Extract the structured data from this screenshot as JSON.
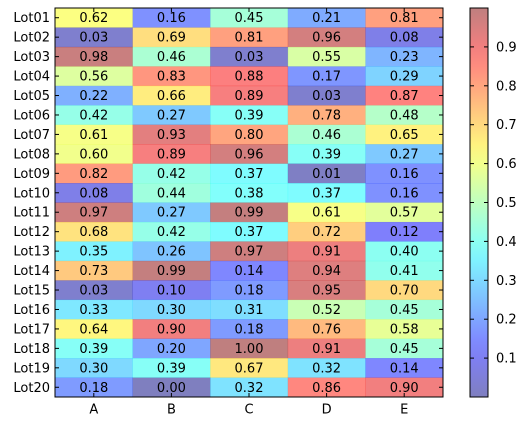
{
  "chart_data": {
    "type": "heatmap",
    "x_categories": [
      "A",
      "B",
      "C",
      "D",
      "E"
    ],
    "y_categories": [
      "Lot01",
      "Lot02",
      "Lot03",
      "Lot04",
      "Lot05",
      "Lot06",
      "Lot07",
      "Lot08",
      "Lot09",
      "Lot10",
      "Lot11",
      "Lot12",
      "Lot13",
      "Lot14",
      "Lot15",
      "Lot16",
      "Lot17",
      "Lot18",
      "Lot19",
      "Lot20"
    ],
    "values": [
      [
        0.62,
        0.16,
        0.45,
        0.21,
        0.81
      ],
      [
        0.03,
        0.69,
        0.81,
        0.96,
        0.08
      ],
      [
        0.98,
        0.46,
        0.03,
        0.55,
        0.23
      ],
      [
        0.56,
        0.83,
        0.88,
        0.17,
        0.29
      ],
      [
        0.22,
        0.66,
        0.89,
        0.03,
        0.87
      ],
      [
        0.42,
        0.27,
        0.39,
        0.78,
        0.48
      ],
      [
        0.61,
        0.93,
        0.8,
        0.46,
        0.65
      ],
      [
        0.6,
        0.89,
        0.96,
        0.39,
        0.27
      ],
      [
        0.82,
        0.42,
        0.37,
        0.01,
        0.16
      ],
      [
        0.08,
        0.44,
        0.38,
        0.37,
        0.16
      ],
      [
        0.97,
        0.27,
        0.99,
        0.61,
        0.57
      ],
      [
        0.68,
        0.42,
        0.37,
        0.72,
        0.12
      ],
      [
        0.35,
        0.26,
        0.97,
        0.91,
        0.4
      ],
      [
        0.73,
        0.99,
        0.14,
        0.94,
        0.41
      ],
      [
        0.03,
        0.1,
        0.18,
        0.95,
        0.7
      ],
      [
        0.33,
        0.3,
        0.31,
        0.52,
        0.45
      ],
      [
        0.64,
        0.9,
        0.18,
        0.76,
        0.58
      ],
      [
        0.39,
        0.2,
        1.0,
        0.91,
        0.45
      ],
      [
        0.3,
        0.39,
        0.67,
        0.32,
        0.14
      ],
      [
        0.18,
        0.0,
        0.32,
        0.86,
        0.9
      ]
    ],
    "value_labels": [
      [
        "0.62",
        "0.16",
        "0.45",
        "0.21",
        "0.81"
      ],
      [
        "0.03",
        "0.69",
        "0.81",
        "0.96",
        "0.08"
      ],
      [
        "0.98",
        "0.46",
        "0.03",
        "0.55",
        "0.23"
      ],
      [
        "0.56",
        "0.83",
        "0.88",
        "0.17",
        "0.29"
      ],
      [
        "0.22",
        "0.66",
        "0.89",
        "0.03",
        "0.87"
      ],
      [
        "0.42",
        "0.27",
        "0.39",
        "0.78",
        "0.48"
      ],
      [
        "0.61",
        "0.93",
        "0.80",
        "0.46",
        "0.65"
      ],
      [
        "0.60",
        "0.89",
        "0.96",
        "0.39",
        "0.27"
      ],
      [
        "0.82",
        "0.42",
        "0.37",
        "0.01",
        "0.16"
      ],
      [
        "0.08",
        "0.44",
        "0.38",
        "0.37",
        "0.16"
      ],
      [
        "0.97",
        "0.27",
        "0.99",
        "0.61",
        "0.57"
      ],
      [
        "0.68",
        "0.42",
        "0.37",
        "0.72",
        "0.12"
      ],
      [
        "0.35",
        "0.26",
        "0.97",
        "0.91",
        "0.40"
      ],
      [
        "0.73",
        "0.99",
        "0.14",
        "0.94",
        "0.41"
      ],
      [
        "0.03",
        "0.10",
        "0.18",
        "0.95",
        "0.70"
      ],
      [
        "0.33",
        "0.30",
        "0.31",
        "0.52",
        "0.45"
      ],
      [
        "0.64",
        "0.90",
        "0.18",
        "0.76",
        "0.58"
      ],
      [
        "0.39",
        "0.20",
        "1.00",
        "0.91",
        "0.45"
      ],
      [
        "0.30",
        "0.39",
        "0.67",
        "0.32",
        "0.14"
      ],
      [
        "0.18",
        "0.00",
        "0.32",
        "0.86",
        "0.90"
      ]
    ],
    "colormap": "jet",
    "alpha": 0.5,
    "zlim": [
      0,
      1
    ],
    "zticks": [
      0.1,
      0.2,
      0.3,
      0.4,
      0.5,
      0.6,
      0.7,
      0.8,
      0.9
    ]
  }
}
